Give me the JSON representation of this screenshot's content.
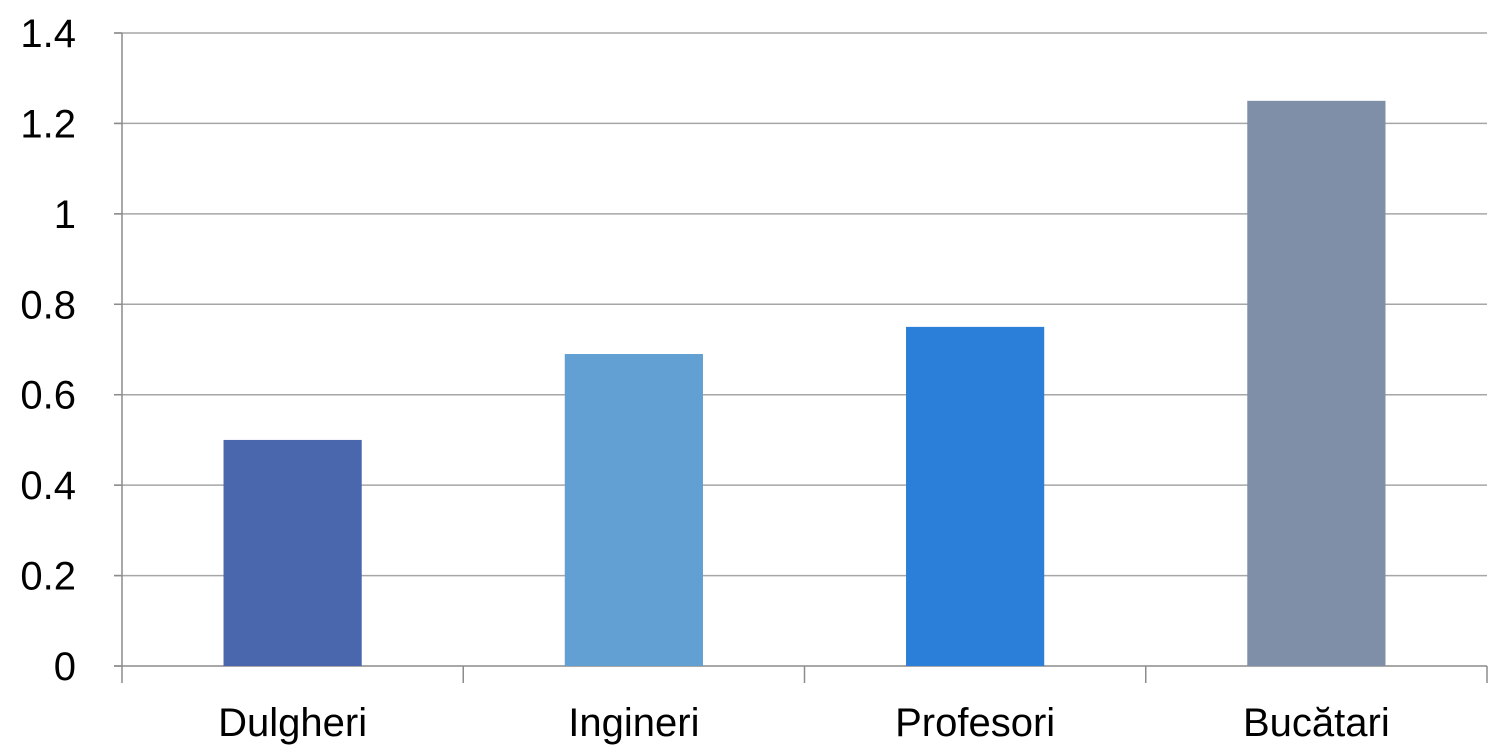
{
  "chart_data": {
    "type": "bar",
    "categories": [
      "Dulgheri",
      "Ingineri",
      "Profesori",
      "Bucătari"
    ],
    "values": [
      0.5,
      0.69,
      0.75,
      1.25
    ],
    "bar_colors": [
      "#4a67ae",
      "#62a0d3",
      "#2b7fd8",
      "#7f8fa8"
    ],
    "title": "",
    "xlabel": "",
    "ylabel": "",
    "ylim": [
      0,
      1.4
    ],
    "y_ticks": [
      "0",
      "0.2",
      "0.4",
      "0.6",
      "0.8",
      "1",
      "1.2",
      "1.4"
    ],
    "grid": true,
    "legend": "none"
  }
}
